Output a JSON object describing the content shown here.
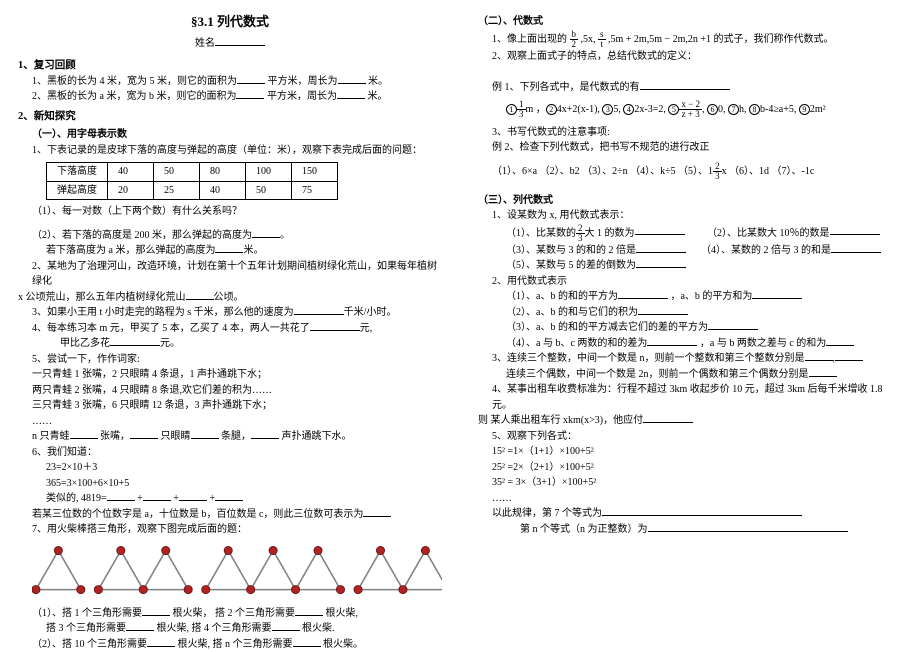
{
  "title": "§3.1 列代数式",
  "name_label": "姓名",
  "s1": {
    "heading": "1、复习回顾",
    "line1a": "1、黑板的长为 4 米，宽为 5 米，则它的面积为",
    "line1b": "平方米，周长为",
    "line1c": "米。",
    "line2a": "2、黑板的长为 a 米，宽为 b 米，则它的面积为",
    "line2b": "平方米，周长为",
    "line2c": "米。"
  },
  "s2": {
    "heading": "2、新知探究",
    "sub1": "（一）、用字母表示数",
    "t1": "1、下表记录的是皮球下落的高度与弹起的高度（单位：米），观察下表完成后面的问题：",
    "table": {
      "r1": [
        "下落高度",
        "40",
        "50",
        "80",
        "100",
        "150"
      ],
      "r2": [
        "弹起高度",
        "20",
        "25",
        "40",
        "50",
        "75"
      ]
    },
    "q1": "（1）、每一对数（上下两个数）有什么关系吗？",
    "q2a": "（2）、若下落的高度是 200 米，那么弹起的高度为",
    "q2b": "。",
    "q2c": "若下落高度为 a 米，那么弹起的高度为",
    "q2d": "米。",
    "p2a": "2、某地为了治理河山，改造环境，计划在第十个五年计划期间植树绿化荒山，如果每年植树绿化",
    "p2b": "x 公顷荒山，那么五年内植树绿化荒山",
    "p2c": "公顷。",
    "p3a": "3、如果小王用 t 小时走完的路程为 s 千米，那么他的速度为",
    "p3b": "千米/小时。",
    "p4a": "4、每本练习本 m 元，甲买了 5 本，乙买了 4 本，两人一共花了",
    "p4b": "元,",
    "p4c": "甲比乙多花",
    "p4d": "元。",
    "p5": "5、尝试一下，作作词家:",
    "p5a": "一只青蛙 1 张嘴，2 只眼睛 4 条退，1 声扑通跳下水；",
    "p5b": "两只青蛙 2 张嘴，4 只眼睛 8 条退,欢它们差的积为……",
    "p5c": "三只青蛙 3 张嘴，6 只眼睛 12 条退，3 声扑通跳下水；",
    "p5d": "……",
    "p5e1": "n 只青蛙",
    "p5e2": "张嘴，",
    "p5e3": "只眼睛",
    "p5e4": "条腿，",
    "p5e5": "声扑通跳下水。",
    "p6": "6、我们知道：",
    "p6a": "23=2×10＋3",
    "p6b": "365=3×100+6×10+5",
    "p6c1": "类似的, 4819=",
    "p6c2": "+",
    "p6c3": "+",
    "p6c4": "+",
    "p6d1": "若某三位数的个位数字是 a，十位数是 b，百位数是 c，则此三位数可表示为",
    "p7": "7、用火柴棒搭三角形，观察下图完成后面的题：",
    "p7q1a": "（1）、搭 1 个三角形需要",
    "p7q1b": "根火柴，  搭 2 个三角形需要",
    "p7q1c": "根火柴,",
    "p7q2a": "搭 3 个三角形需要",
    "p7q2b": "根火柴, 搭 4 个三角形需要",
    "p7q2c": "根火柴.",
    "p7q3a": "（2）、搭 10 个三角形需要",
    "p7q3b": "根火柴, 搭 n 个三角形需要",
    "p7q3c": "根火柴。"
  },
  "s2b": {
    "heading": "（二）、代数式",
    "l1a": "1、像上面出现的",
    "l1b": ",5x,",
    "l1c": ",5m + 2m,5m − 2m,2n +1 的式子，我们称作代数式。",
    "l2": "2、观察上面式子的特点，总结代数式的定义：",
    "ex1": "例 1、下列各式中，是代数式的有",
    "ex1opts": {
      "o1": "m",
      "o2": "4x+2(x-1),",
      "o3": "5,",
      "o4": "2x-3=2,",
      "o6": "0,",
      "o7": "h,",
      "o8": "b-4≥a+5,",
      "o9": "2m²"
    },
    "l3": "3、书写代数式的注意事项:",
    "ex2": "例 2、检查下列代数式，把书写不规范的进行改正",
    "ex2items": "（1）、6×a    （2）、b2    （3）、2÷n    （4）、k÷5    （5）、1",
    "ex2item5b": "x    （6）、1d    （7）、-1c"
  },
  "s3": {
    "heading": "（三）、列代数式",
    "l1": "1、设某数为 x, 用代数式表示：",
    "q1a": "（1）、比某数的",
    "q1b": "大 1 的数为",
    "q1c": "（2）、比某数大 10％的数是",
    "q3a": "（3）、某数与 3 的和的 2 倍是",
    "q3b": "（4）、某数的 2 倍与 3 的和是",
    "q5a": "（5）、某数与 5 的差的倒数为",
    "l2": "2、用代数式表示",
    "q21": "（1）、a、b 的和的平方为",
    "q21b": "，a、b 的平方和为",
    "q22": "（2）、a、b 的和与它们的积为",
    "q23": "（3）、a、b 的和的平方减去它们的差的平方为",
    "q24": "（4）、a 与 b、c 两数的和的差为",
    "q24b": "，a 与 b 两数之差与 c 的和为",
    "l3": "3、连续三个整数，中间一个数是 n，则前一个整数和第三个整数分别是",
    "l3b": "连续三个偶数，中间一个数是 2n，则前一个偶数和第三个偶数分别是",
    "l4a": "4、某事出租车收费标准为：行程不超过 3km 收起步价 10 元，超过 3km 后每千米增收 1.8 元。",
    "l4b": "则         某人乘出租车行 xkm(x>3)，他应付",
    "l5": "5、观察下列各式：",
    "l5a": "15² =1×（1+1）×100+5²",
    "l5b": "25² =2×（2+1）×100+5²",
    "l5c": "35² = 3×（3+1）×100+5²",
    "l5d": "……",
    "l5e": "以此规律，第 7 个等式为",
    "l5f": "第 n 个等式（n 为正整数）为"
  },
  "svg": {
    "dot_fill": "#b22222",
    "dot_stroke": "#5a0e0e",
    "line": "#808080"
  }
}
